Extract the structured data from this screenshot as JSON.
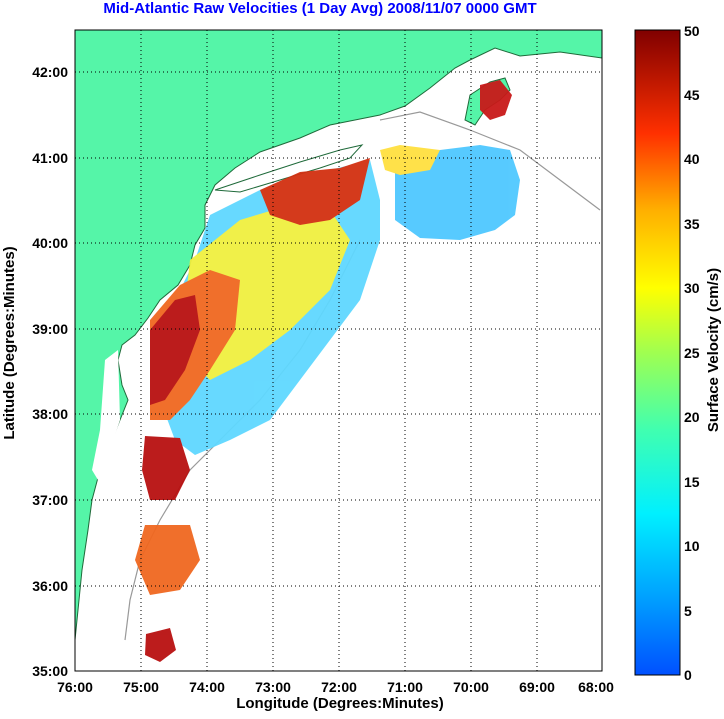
{
  "title": "Mid-Atlantic Raw Velocities (1 Day Avg) 2008/11/07 0000 GMT",
  "x_axis": {
    "label": "Longitude (Degrees:Minutes)",
    "ticks": [
      "76:00",
      "75:00",
      "74:00",
      "73:00",
      "72:00",
      "71:00",
      "70:00",
      "69:00",
      "68:00"
    ]
  },
  "y_axis": {
    "label": "Latitude (Degrees:Minutes)",
    "ticks": [
      "35:00",
      "36:00",
      "37:00",
      "38:00",
      "39:00",
      "40:00",
      "41:00",
      "42:00"
    ]
  },
  "colorbar": {
    "label": "Surface Velocity (cm/s)",
    "ticks": [
      "0",
      "5",
      "10",
      "15",
      "20",
      "25",
      "30",
      "35",
      "40",
      "45",
      "50"
    ],
    "range": [
      0,
      50
    ]
  },
  "map": {
    "lon_range": [
      -76,
      -68
    ],
    "lat_range": [
      35,
      42.5
    ],
    "grid": true,
    "land_color": "#55f5a8",
    "water_color": "#ffffff"
  }
}
